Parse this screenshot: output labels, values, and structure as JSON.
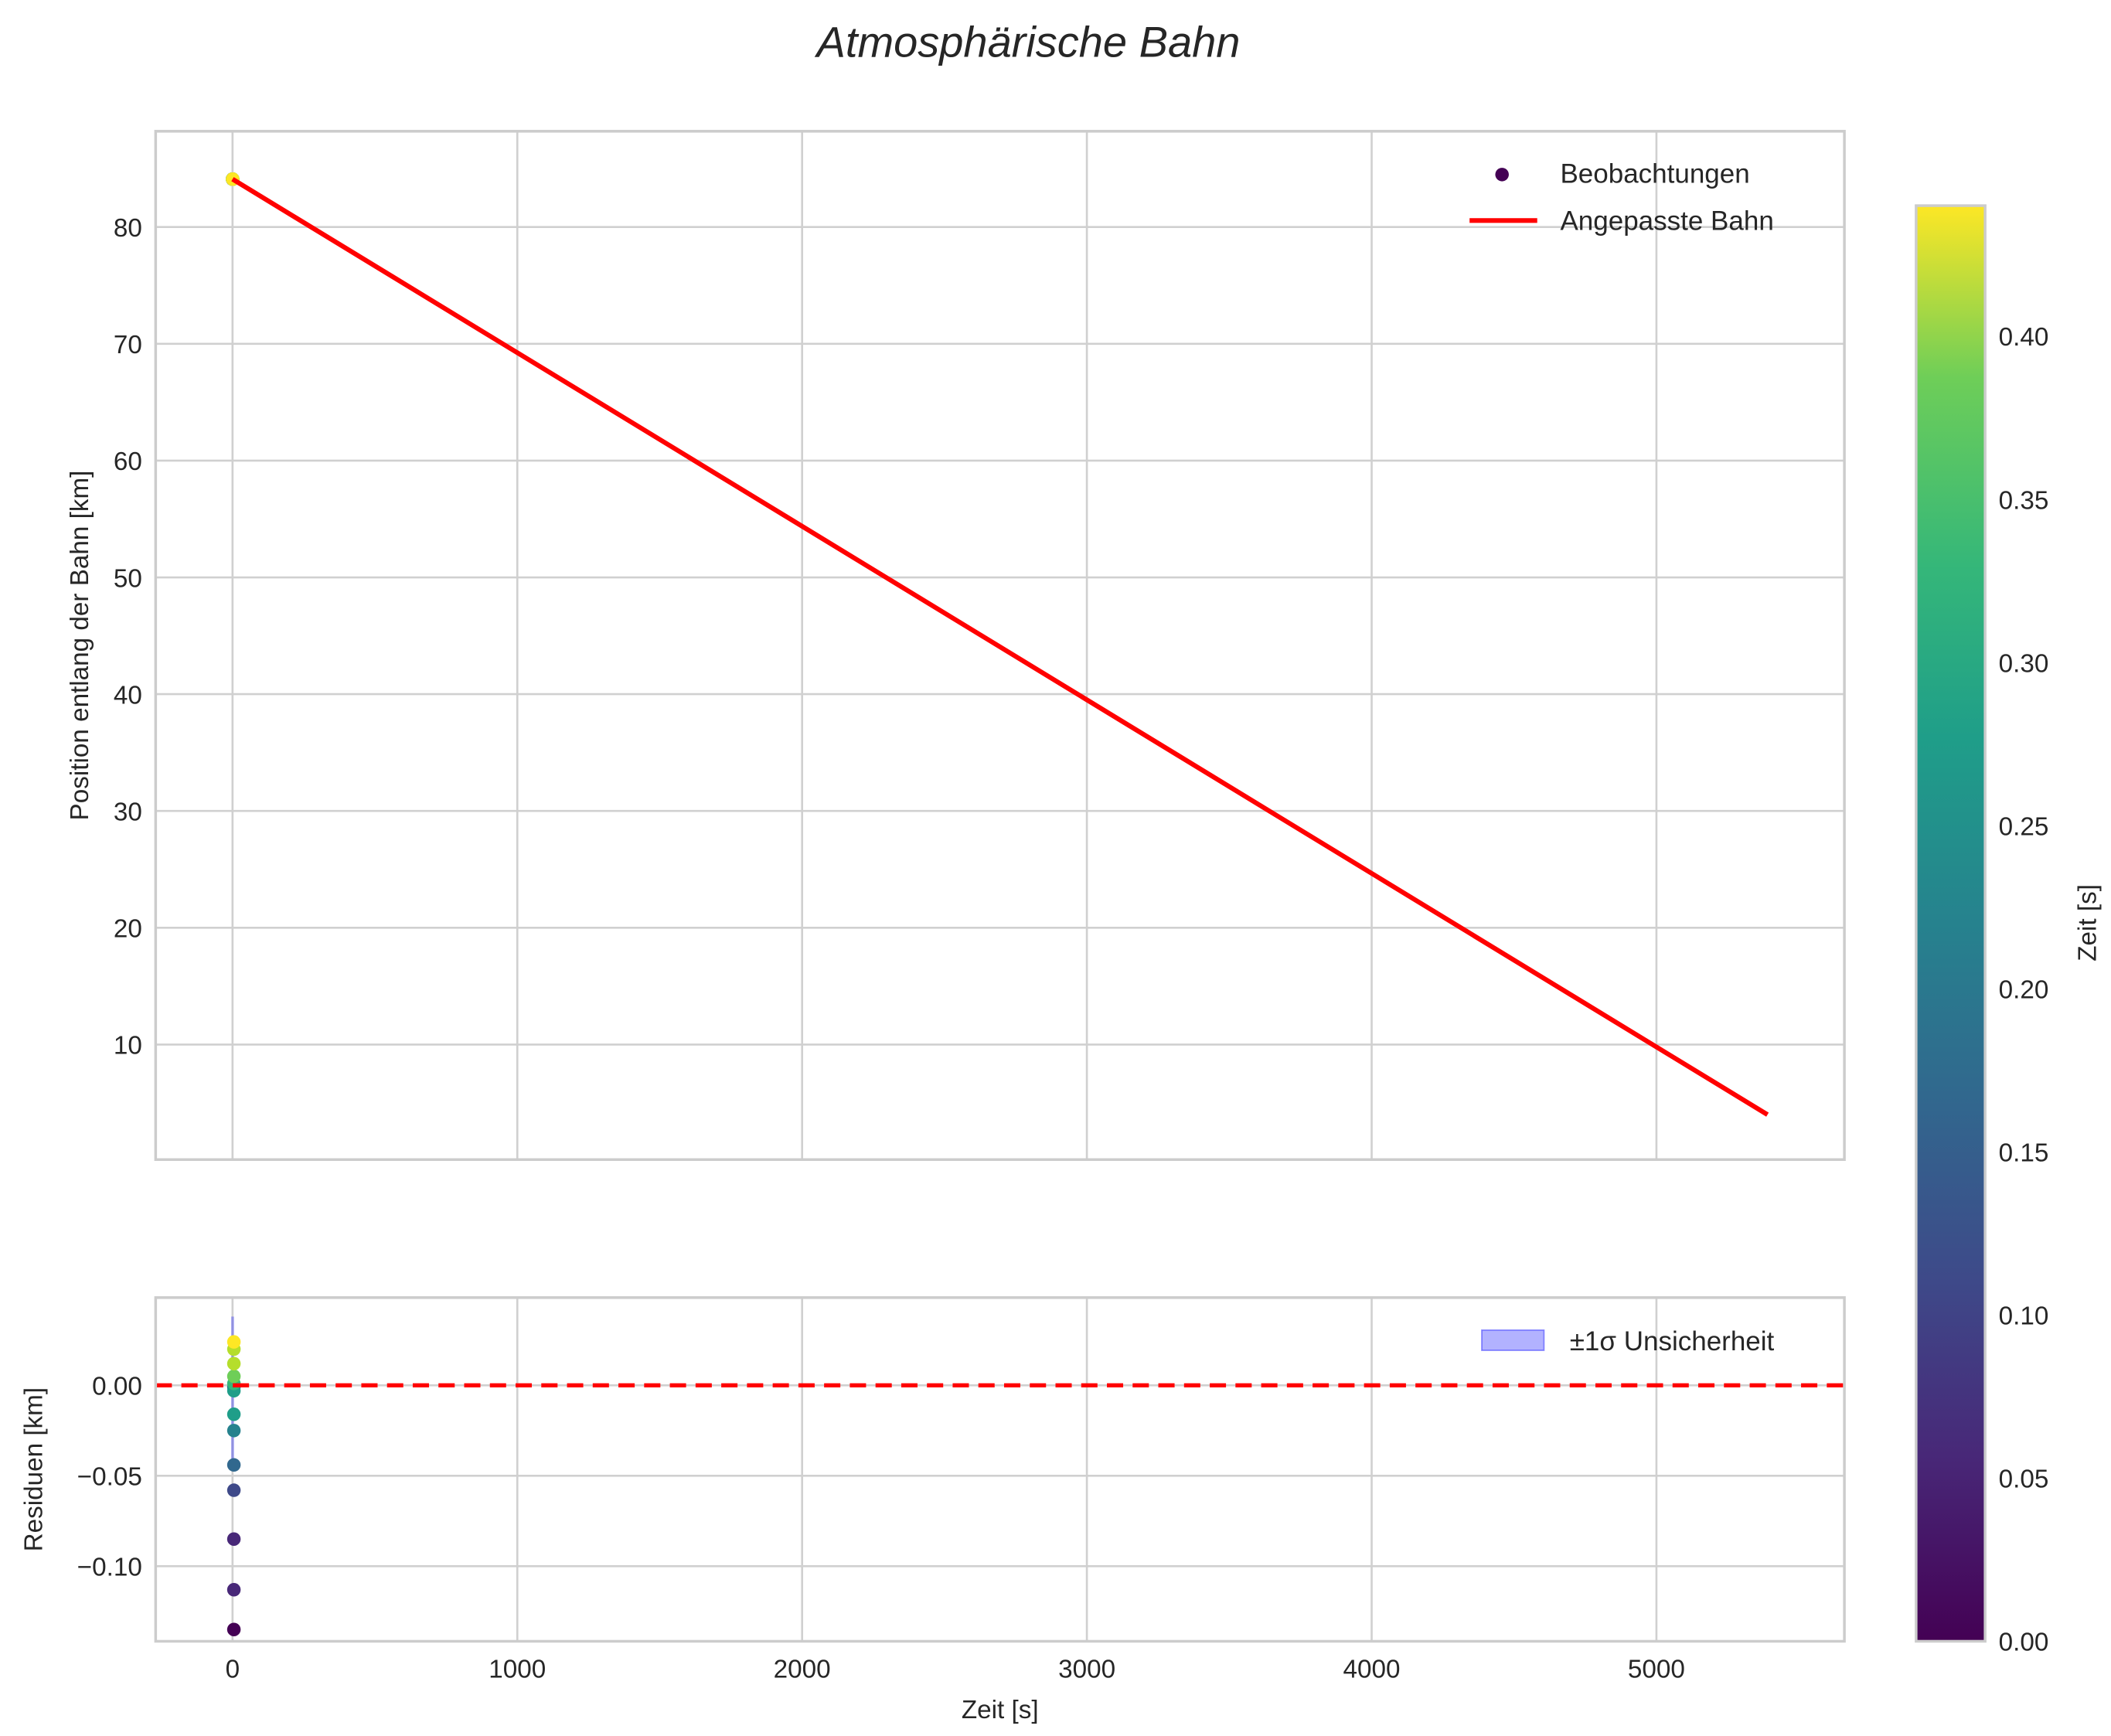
{
  "chart_data": [
    {
      "type": "line",
      "title": "Atmosphärische Bahn",
      "xlabel": "",
      "ylabel": "Position entlang der Bahn [km]",
      "xlim": [
        -270,
        5660
      ],
      "ylim": [
        0.15,
        88.2
      ],
      "grid": true,
      "yticks": [
        10,
        20,
        30,
        40,
        50,
        60,
        70,
        80
      ],
      "legend": {
        "placement": "top-right",
        "entries": [
          "Beobachtungen",
          "Angepasste Bahn"
        ]
      },
      "series": [
        {
          "name": "Beobachtungen",
          "type": "scatter",
          "x": [
            0,
            0.037,
            0.073,
            0.11,
            0.147,
            0.183,
            0.22,
            0.257,
            0.293,
            0.33,
            0.367,
            0.403,
            0.44
          ],
          "y": [
            84.1,
            84.1,
            84.1,
            84.1,
            84.1,
            84.1,
            84.1,
            84.1,
            84.1,
            84.1,
            84.1,
            84.1,
            84.1
          ]
        },
        {
          "name": "Angepasste Bahn",
          "type": "line",
          "x": [
            0,
            5390
          ],
          "y": [
            84.1,
            4.0
          ],
          "color": "#ff0000"
        }
      ]
    },
    {
      "type": "scatter",
      "xlabel": "Zeit [s]",
      "ylabel": "Residuen [km]",
      "xlim": [
        -270,
        5660
      ],
      "ylim": [
        -0.1415,
        0.0485
      ],
      "grid": true,
      "xticks": [
        0,
        1000,
        2000,
        3000,
        4000,
        5000
      ],
      "yticks": [
        "0.00",
        "−0.05",
        "−0.10"
      ],
      "ytick_values": [
        0,
        -0.05,
        -0.1
      ],
      "legend": {
        "placement": "top-right",
        "entries": [
          "±1σ Unsicherheit"
        ]
      },
      "uncertainty_band": {
        "x": [
          0,
          0.44
        ],
        "lower": -0.042,
        "upper": 0.038,
        "color": "#0000ff"
      },
      "zero_line": {
        "y": 0,
        "color": "#ff0000",
        "style": "dashed"
      },
      "series": [
        {
          "name": "Residuen",
          "t": [
            0,
            0.037,
            0.073,
            0.11,
            0.147,
            0.165,
            0.183,
            0.22,
            0.257,
            0.293,
            0.33,
            0.367,
            0.403,
            0.44
          ],
          "y": [
            -0.135,
            -0.113,
            -0.085,
            -0.058,
            -0.044,
            -0.001,
            -0.025,
            -0.016,
            -0.003,
            0.001,
            0.005,
            0.012,
            0.02,
            0.024
          ]
        }
      ]
    },
    {
      "type": "colorbar",
      "label": "Zeit [s]",
      "range": [
        0,
        0.44
      ],
      "ticks": [
        "0.00",
        "0.05",
        "0.10",
        "0.15",
        "0.20",
        "0.25",
        "0.30",
        "0.35",
        "0.40"
      ],
      "tick_values": [
        0,
        0.05,
        0.1,
        0.15,
        0.2,
        0.25,
        0.3,
        0.35,
        0.4
      ],
      "colormap": "viridis"
    }
  ]
}
